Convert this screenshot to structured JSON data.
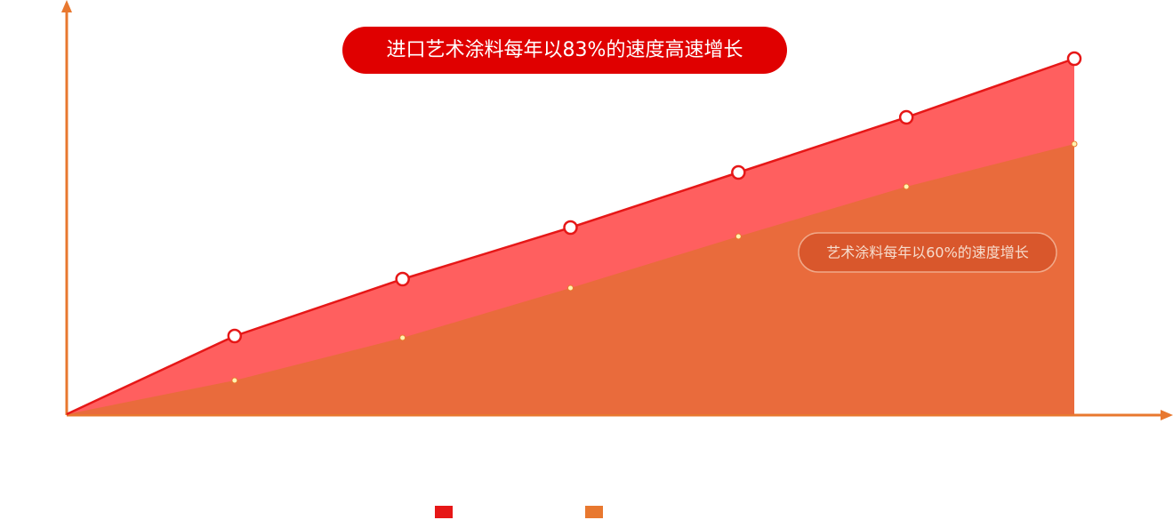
{
  "chart_data": {
    "type": "area",
    "title": "进口艺术涂料每年以83%的速度高速增长",
    "annotations": [
      "艺术涂料每年以60%的速度增长"
    ],
    "categories": [
      null,
      null,
      null,
      null,
      null,
      null,
      null
    ],
    "series": [
      {
        "color": "#e61717",
        "fill": "#ff5f5f",
        "values": [
          0,
          22,
          38,
          52.5,
          68,
          83.5,
          100
        ]
      },
      {
        "color": "#e8782f",
        "fill": "#e96b3c",
        "values": [
          0,
          9.5,
          21.5,
          35.5,
          50,
          64,
          76
        ]
      }
    ],
    "ylim": [
      0,
      100
    ],
    "grid": false
  }
}
